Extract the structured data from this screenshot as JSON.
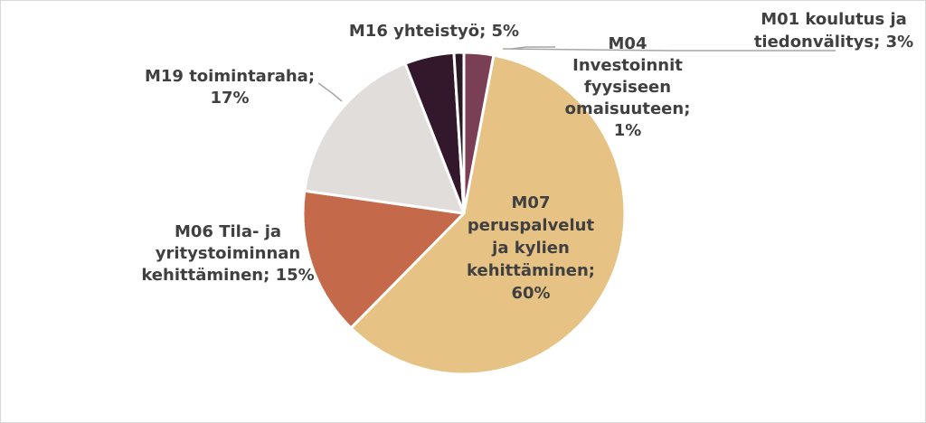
{
  "chart_data": {
    "type": "pie",
    "title": "",
    "slices": [
      {
        "name": "M01 koulutus ja tiedonvälitys",
        "value": 3,
        "label_lines": [
          "M01 koulutus ja",
          "tiedonvälitys; 3%"
        ],
        "color": "#7b3f55"
      },
      {
        "name": "M07 peruspalvelut ja kylien kehittäminen",
        "value": 60,
        "label_lines": [
          "M07",
          "peruspalvelut",
          "ja kylien",
          "kehittäminen;",
          "60%"
        ],
        "color": "#e6c285"
      },
      {
        "name": "M06 Tila- ja yritystoiminnan kehittäminen",
        "value": 15,
        "label_lines": [
          "M06 Tila- ja",
          "yritystoiminnan",
          "kehittäminen; 15%"
        ],
        "color": "#c4694a"
      },
      {
        "name": "M19 toimintaraha",
        "value": 17,
        "label_lines": [
          "M19 toimintaraha;",
          "17%"
        ],
        "color": "#e0dddb"
      },
      {
        "name": "M16 yhteistyö",
        "value": 5,
        "label_lines": [
          "M16 yhteistyö; 5%"
        ],
        "color": "#33172a"
      },
      {
        "name": "M04 Investoinnit fyysiseen omaisuuteen",
        "value": 1,
        "label_lines": [
          "M04",
          "Investoinnit",
          "fyysiseen",
          "omaisuuteen;",
          "1%"
        ],
        "color": "#2a1a24"
      }
    ],
    "label_color": "#404040",
    "leader_color": "#a6a6a6"
  }
}
